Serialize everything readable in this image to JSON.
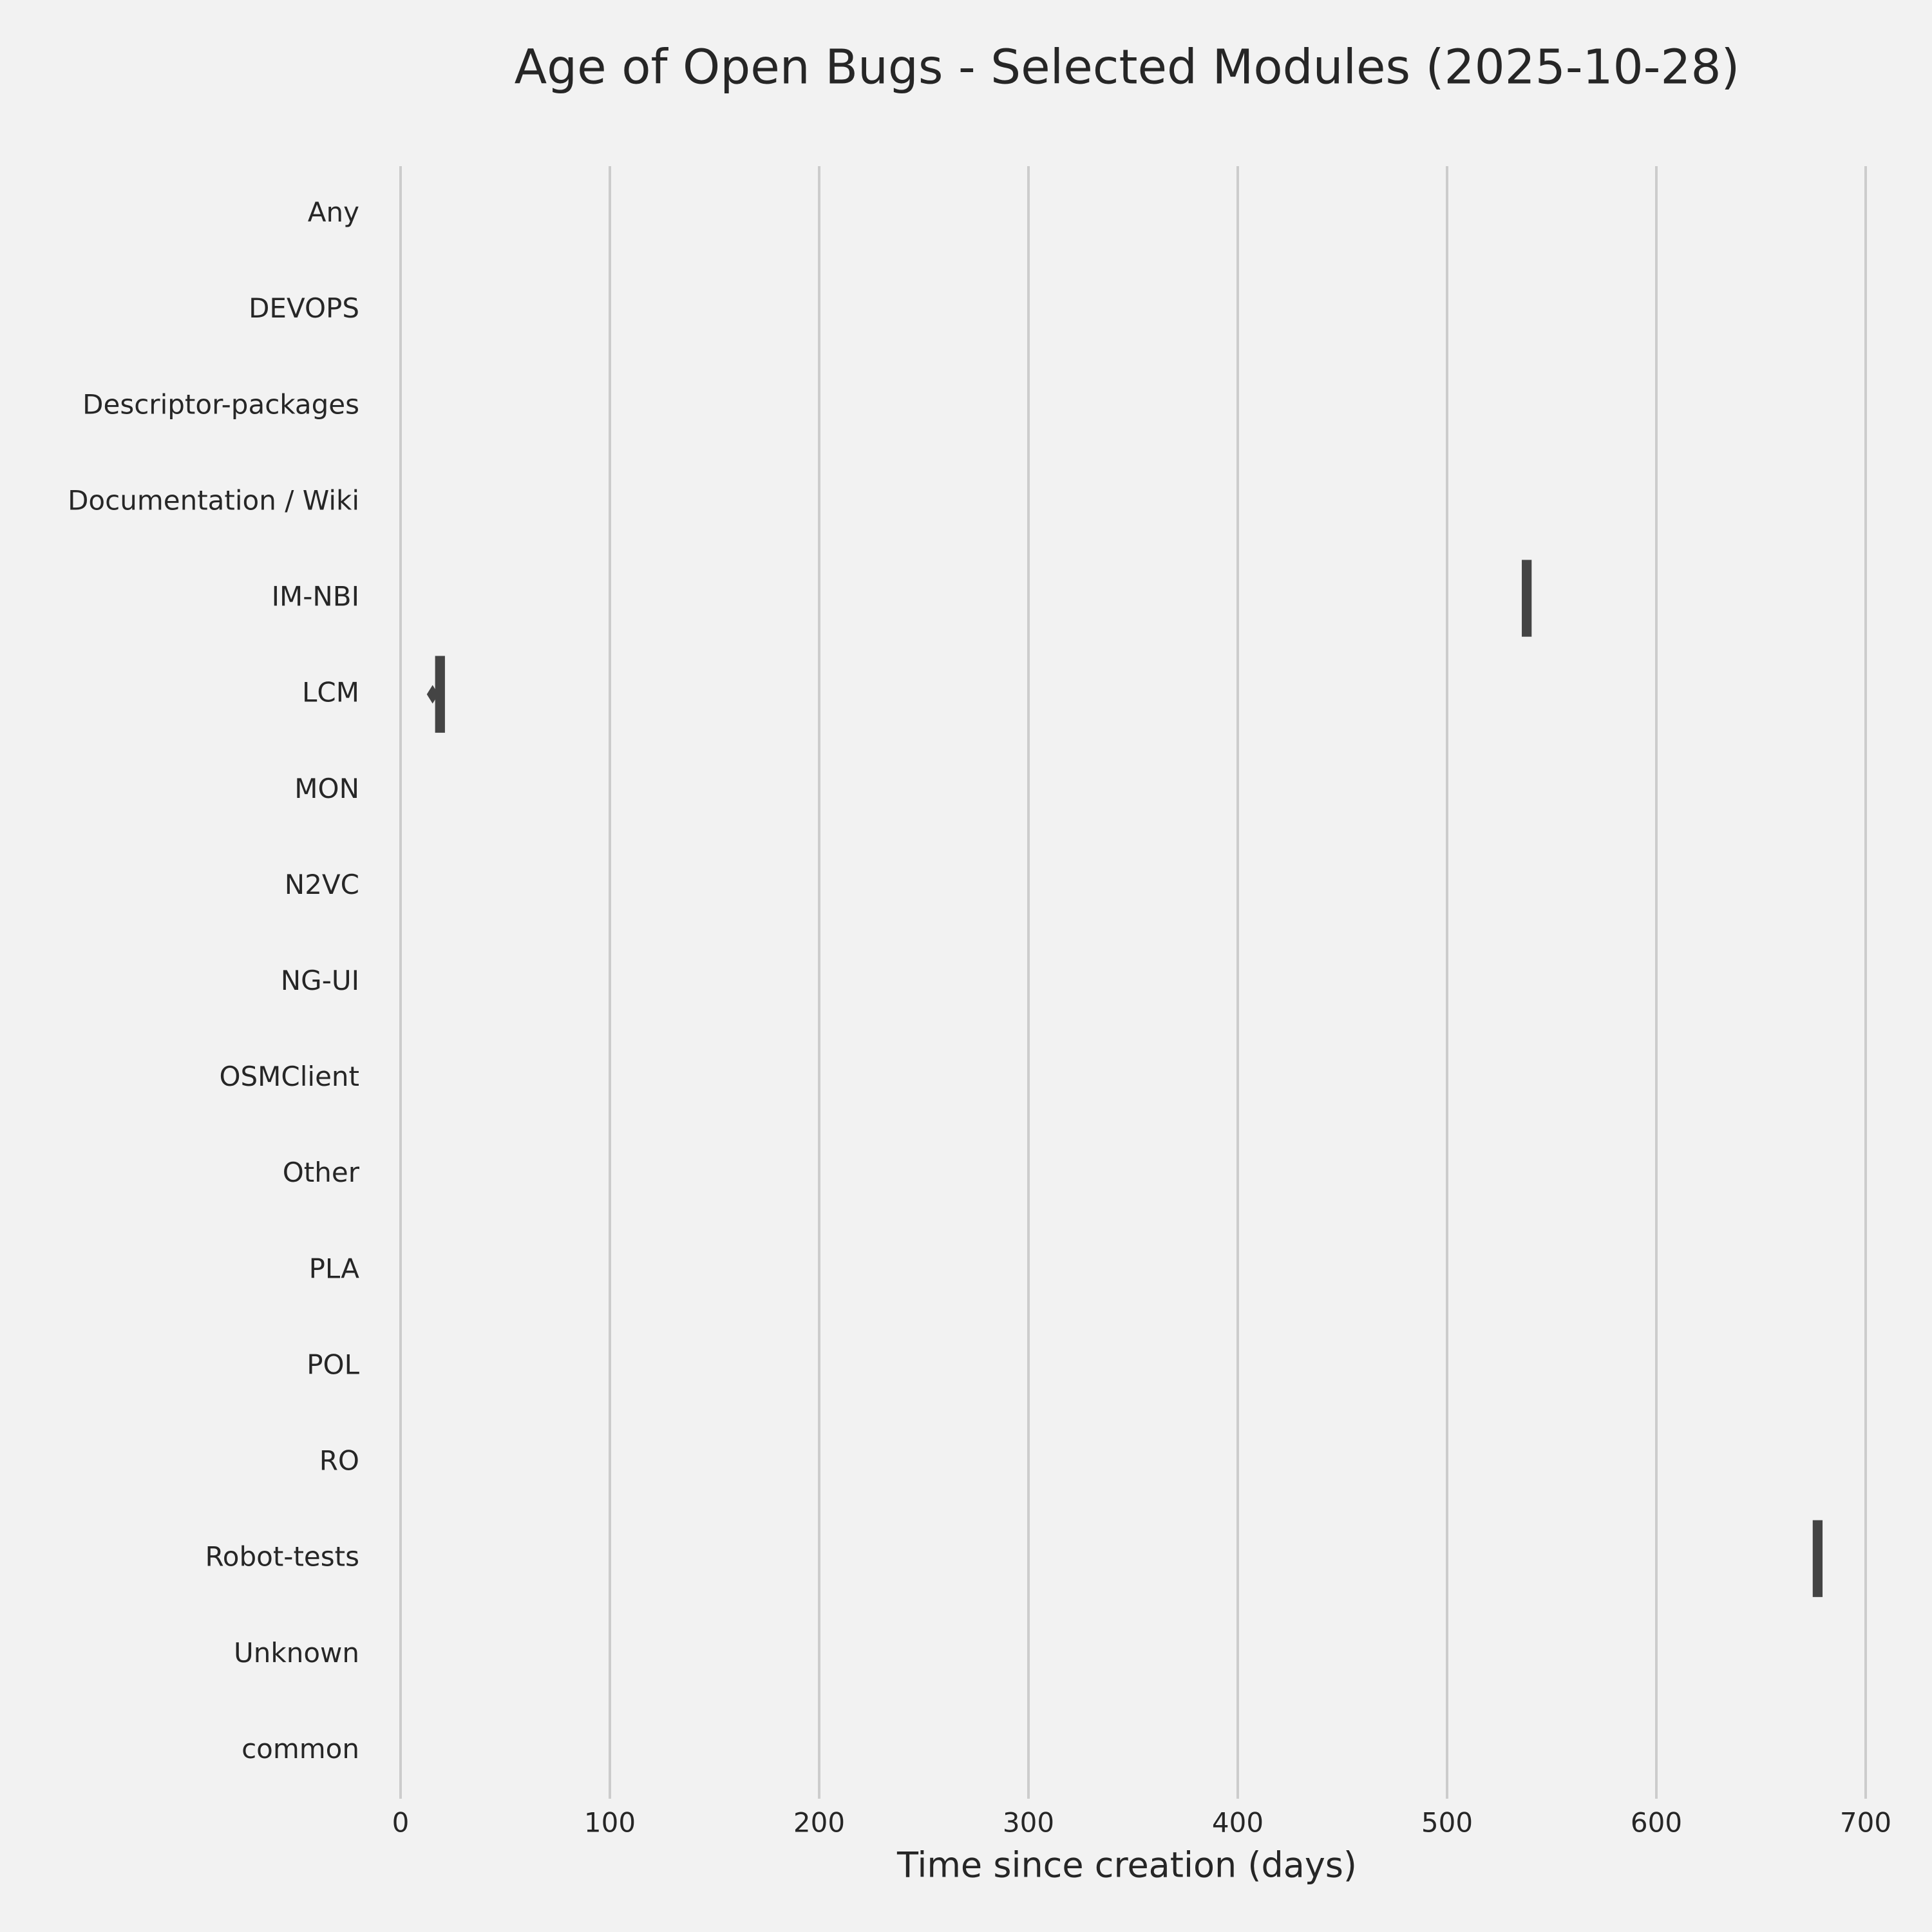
{
  "chart_data": {
    "type": "box",
    "title": "Age of Open Bugs - Selected Modules (2025-10-28)",
    "xlabel": "Time since creation (days)",
    "categories": [
      "Any",
      "DEVOPS",
      "Descriptor-packages",
      "Documentation / Wiki",
      "IM-NBI",
      "LCM",
      "MON",
      "N2VC",
      "NG-UI",
      "OSMClient",
      "Other",
      "PLA",
      "POL",
      "RO",
      "Robot-tests",
      "Unknown",
      "common"
    ],
    "low": [
      null,
      null,
      null,
      null,
      535.7,
      16.5,
      null,
      null,
      null,
      null,
      null,
      null,
      null,
      null,
      674.7,
      null,
      null
    ],
    "high": [
      null,
      null,
      null,
      null,
      540.4,
      21.2,
      null,
      null,
      null,
      null,
      null,
      null,
      null,
      null,
      679.4,
      null,
      null
    ],
    "outliers": [
      null,
      null,
      null,
      null,
      null,
      15.3,
      null,
      null,
      null,
      null,
      null,
      null,
      null,
      null,
      null,
      null,
      null
    ],
    "color": "#444444",
    "xlim": [
      0,
      700
    ],
    "xticks": [
      0,
      100,
      200,
      300,
      400,
      500,
      600,
      700
    ],
    "grid": true
  }
}
